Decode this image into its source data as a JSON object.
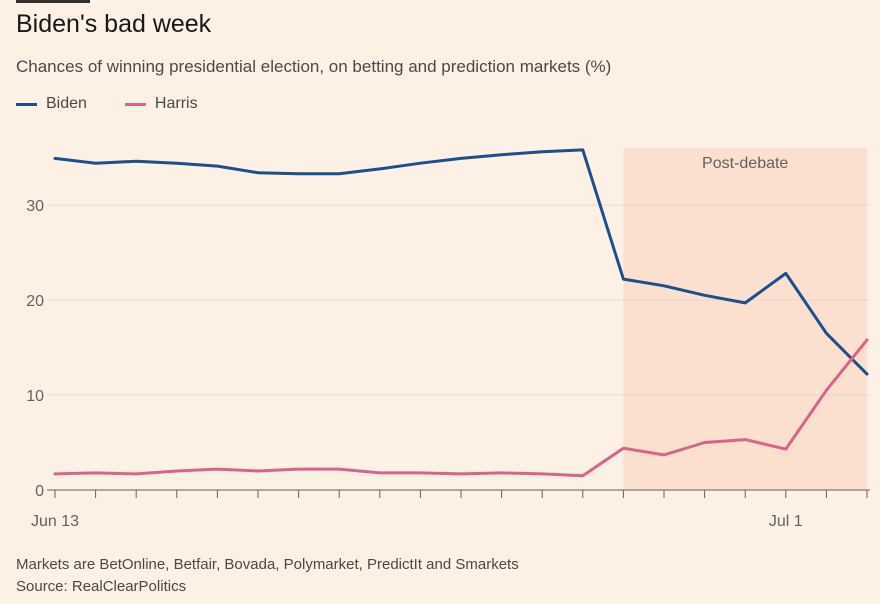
{
  "title": "Biden's bad week",
  "subtitle": "Chances of winning presidential election, on betting and prediction markets (%)",
  "legend": [
    {
      "label": "Biden",
      "color": "#1f4e8c"
    },
    {
      "label": "Harris",
      "color": "#d9648a"
    }
  ],
  "footnotes": {
    "markets": "Markets are BetOnline, Betfair, Bovada, Polymarket, PredictIt and Smarkets",
    "source": "Source: RealClearPolitics"
  },
  "chart_data": {
    "type": "line",
    "x": [
      "2024-06-13",
      "2024-06-14",
      "2024-06-15",
      "2024-06-16",
      "2024-06-17",
      "2024-06-18",
      "2024-06-19",
      "2024-06-20",
      "2024-06-21",
      "2024-06-22",
      "2024-06-23",
      "2024-06-24",
      "2024-06-25",
      "2024-06-26",
      "2024-06-27",
      "2024-06-28",
      "2024-06-29",
      "2024-06-30",
      "2024-07-01",
      "2024-07-02",
      "2024-07-03"
    ],
    "series": [
      {
        "name": "Biden",
        "color": "#1f4e8c",
        "values": [
          34.9,
          34.4,
          34.6,
          34.4,
          34.1,
          33.4,
          33.3,
          33.3,
          33.8,
          34.4,
          34.9,
          35.3,
          35.6,
          35.8,
          22.2,
          21.5,
          20.5,
          19.7,
          22.8,
          16.5,
          12.2
        ]
      },
      {
        "name": "Harris",
        "color": "#d9648a",
        "values": [
          1.7,
          1.8,
          1.7,
          2.0,
          2.2,
          2.0,
          2.2,
          2.2,
          1.8,
          1.8,
          1.7,
          1.8,
          1.7,
          1.5,
          4.4,
          3.7,
          5.0,
          5.3,
          4.3,
          10.5,
          15.8
        ]
      }
    ],
    "ylim": [
      0,
      36
    ],
    "yticks": [
      0,
      10,
      20,
      30
    ],
    "xtick_labels": [
      {
        "x": "2024-06-13",
        "label": "Jun 13"
      },
      {
        "x": "2024-07-01",
        "label": "Jul 1"
      }
    ],
    "shaded_region": {
      "from": "2024-06-27",
      "to": "2024-07-03",
      "label": "Post-debate",
      "color": "#fbe0cf"
    },
    "grid": "horizontal",
    "legend_position": "top-left"
  }
}
